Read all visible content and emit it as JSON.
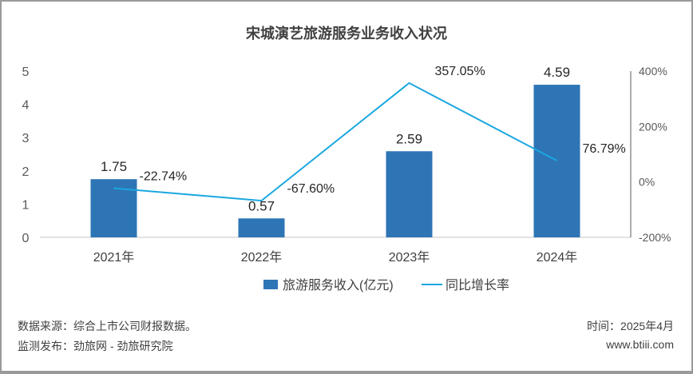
{
  "chart_data": {
    "type": "bar+line",
    "title": "宋城演艺旅游服务业务收入状况",
    "categories": [
      "2021年",
      "2022年",
      "2023年",
      "2024年"
    ],
    "series": [
      {
        "name": "旅游服务收入(亿元)",
        "type": "bar",
        "axis": "left",
        "color": "#2e75b6",
        "values": [
          1.75,
          0.57,
          2.59,
          4.59
        ],
        "labels": [
          "1.75",
          "0.57",
          "2.59",
          "4.59"
        ]
      },
      {
        "name": "同比增长率",
        "type": "line",
        "axis": "right",
        "color": "#1aa7e0",
        "values": [
          -22.74,
          -67.6,
          357.05,
          76.79
        ],
        "labels": [
          "-22.74%",
          "-67.60%",
          "357.05%",
          "76.79%"
        ]
      }
    ],
    "left_axis": {
      "ylim": [
        0,
        5
      ],
      "ticks": [
        "0",
        "1",
        "2",
        "3",
        "4",
        "5"
      ]
    },
    "right_axis": {
      "ylim": [
        -200,
        400
      ],
      "ticks": [
        "-200%",
        "0%",
        "200%",
        "400%"
      ],
      "tick_values": [
        -200,
        0,
        200,
        400
      ]
    },
    "legend": "bottom-center",
    "grid": false
  },
  "footer": {
    "source": "数据来源：综合上市公司财报数据。",
    "publisher": "监测发布：劲旅网 - 劲旅研究院",
    "date": "时间：2025年4月",
    "site": "www.btiii.com"
  }
}
